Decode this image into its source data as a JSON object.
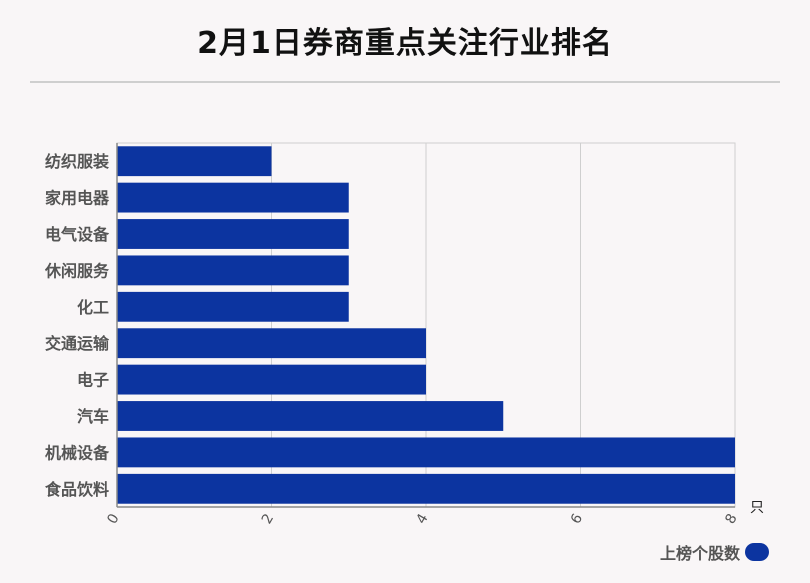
{
  "title": "2月1日券商重点关注行业排名",
  "colors": {
    "bar": "#0c34a0",
    "grid": "#cfcfcf",
    "axis": "#888888",
    "label": "#555555"
  },
  "chart_data": {
    "type": "bar",
    "orientation": "horizontal",
    "title": "2月1日券商重点关注行业排名",
    "categories": [
      "纺织服装",
      "家用电器",
      "电气设备",
      "休闲服务",
      "化工",
      "交通运输",
      "电子",
      "汽车",
      "机械设备",
      "食品饮料"
    ],
    "series": [
      {
        "name": "上榜个股数",
        "values": [
          2,
          3,
          3,
          3,
          3,
          4,
          4,
          5,
          8,
          8
        ]
      }
    ],
    "xlim": [
      0,
      8
    ],
    "xticks": [
      "0",
      "2",
      "4",
      "6",
      "8"
    ],
    "xunit": "只",
    "grid": true,
    "legend_position": "bottom-right"
  }
}
